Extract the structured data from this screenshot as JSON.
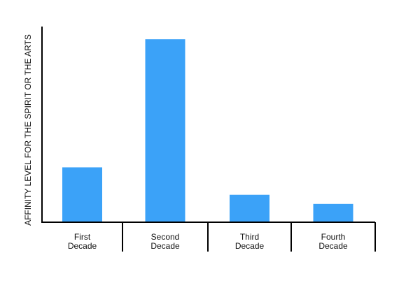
{
  "chart_data": {
    "type": "bar",
    "title": "",
    "xlabel": "",
    "ylabel": "AFFINITY LEVEL FOR THE SPIRIT OR THE ARTS",
    "categories": [
      [
        "First",
        "Decade"
      ],
      [
        "Second",
        "Decade"
      ],
      [
        "Third",
        "Decade"
      ],
      [
        "Fourth",
        "Decade"
      ]
    ],
    "values": [
      3,
      10,
      1.5,
      1
    ],
    "ylim": [
      0,
      11
    ],
    "grid": false,
    "legend": "none",
    "bar_color": "#3ba2f8",
    "axis_color": "#000000"
  }
}
